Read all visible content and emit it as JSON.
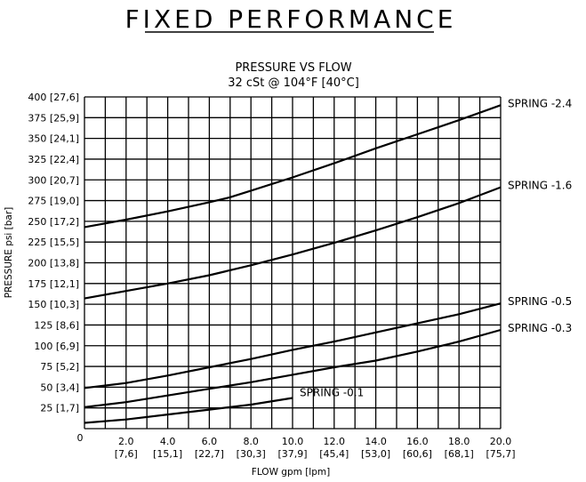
{
  "header": {
    "title": "FIXED PERFORMANCE"
  },
  "chart_data": {
    "type": "line",
    "title": "PRESSURE VS FLOW",
    "subtitle": "32 cSt @ 104°F [40°C]",
    "xlabel": "FLOW gpm [lpm]",
    "ylabel": "PRESSURE psi [bar]",
    "xlim": [
      0,
      20
    ],
    "ylim": [
      0,
      400
    ],
    "grid": true,
    "origin_label": "0",
    "x_ticks": [
      {
        "value": 2,
        "label": "2.0",
        "sub": "[7,6]"
      },
      {
        "value": 4,
        "label": "4.0",
        "sub": "[15,1]"
      },
      {
        "value": 6,
        "label": "6.0",
        "sub": "[22,7]"
      },
      {
        "value": 8,
        "label": "8.0",
        "sub": "[30,3]"
      },
      {
        "value": 10,
        "label": "10.0",
        "sub": "[37,9]"
      },
      {
        "value": 12,
        "label": "12.0",
        "sub": "[45,4]"
      },
      {
        "value": 14,
        "label": "14.0",
        "sub": "[53,0]"
      },
      {
        "value": 16,
        "label": "16.0",
        "sub": "[60,6]"
      },
      {
        "value": 18,
        "label": "18.0",
        "sub": "[68,1]"
      },
      {
        "value": 20,
        "label": "20.0",
        "sub": "[75,7]"
      }
    ],
    "y_ticks": [
      {
        "value": 25,
        "label": "25 [1,7]"
      },
      {
        "value": 50,
        "label": "50 [3,4]"
      },
      {
        "value": 75,
        "label": "75 [5,2]"
      },
      {
        "value": 100,
        "label": "100 [6,9]"
      },
      {
        "value": 125,
        "label": "125 [8,6]"
      },
      {
        "value": 150,
        "label": "150 [10,3]"
      },
      {
        "value": 175,
        "label": "175 [12,1]"
      },
      {
        "value": 200,
        "label": "200 [13,8]"
      },
      {
        "value": 225,
        "label": "225 [15,5]"
      },
      {
        "value": 250,
        "label": "250 [17,2]"
      },
      {
        "value": 275,
        "label": "275 [19,0]"
      },
      {
        "value": 300,
        "label": "300 [20,7]"
      },
      {
        "value": 325,
        "label": "325 [22,4]"
      },
      {
        "value": 350,
        "label": "350 [24,1]"
      },
      {
        "value": 375,
        "label": "375 [25,9]"
      },
      {
        "value": 400,
        "label": "400 [27,6]"
      }
    ],
    "series": [
      {
        "name": "SPRING -2.4",
        "label_pos": "right",
        "x": [
          0,
          2,
          4,
          6,
          7,
          8,
          10,
          12,
          14,
          16,
          18,
          20
        ],
        "y": [
          243,
          252,
          262,
          273,
          279,
          287,
          303,
          320,
          338,
          355,
          372,
          390
        ]
      },
      {
        "name": "SPRING -1.6",
        "label_pos": "right",
        "x": [
          0,
          2,
          4,
          6,
          8,
          10,
          12,
          14,
          16,
          18,
          20
        ],
        "y": [
          157,
          166,
          175,
          185,
          197,
          210,
          224,
          239,
          255,
          272,
          291
        ]
      },
      {
        "name": "SPRING -0.5",
        "label_pos": "right",
        "x": [
          0,
          2,
          4,
          6,
          8,
          10,
          12,
          14,
          16,
          18,
          20
        ],
        "y": [
          49,
          55,
          64,
          74,
          84,
          95,
          105,
          116,
          127,
          138,
          151
        ]
      },
      {
        "name": "SPRING -0.3",
        "label_pos": "right",
        "x": [
          0,
          2,
          4,
          6,
          8,
          10,
          12,
          14,
          16,
          18,
          20
        ],
        "y": [
          26,
          32,
          40,
          48,
          56,
          65,
          74,
          82,
          93,
          105,
          119
        ]
      },
      {
        "name": "SPRING -0.1",
        "label_pos": "inside",
        "x": [
          0,
          2,
          4,
          6,
          8,
          10
        ],
        "y": [
          7,
          11,
          17,
          23,
          29,
          37
        ]
      }
    ]
  }
}
